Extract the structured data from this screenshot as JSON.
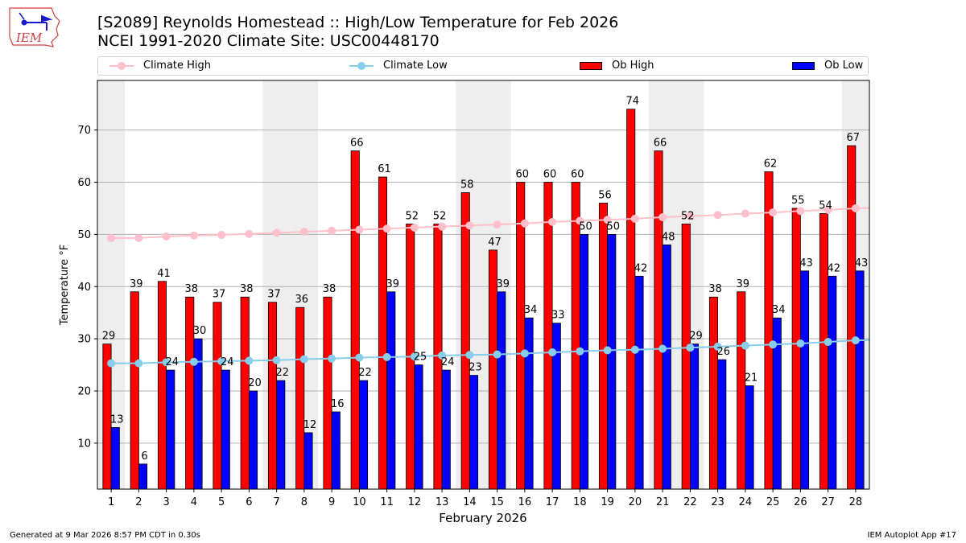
{
  "title_line1": "[S2089] Reynolds Homestead :: High/Low Temperature for Feb 2026",
  "title_line2": "NCEI 1991-2020 Climate Site: USC00448170",
  "logo_text": "IEM",
  "footer_left": "Generated at 9 Mar 2026 8:57 PM CDT in 0.30s",
  "footer_right": "IEM Autoplot App #17",
  "colors": {
    "ob_high": "#ff0000",
    "ob_low": "#0000ff",
    "climate_high": "#ffc0cb",
    "climate_low": "#87ceeb",
    "weekend_shade": "#eeeeee",
    "grid": "#b0b0b0"
  },
  "legend": [
    {
      "label": "Climate High",
      "kind": "line",
      "color_key": "climate_high"
    },
    {
      "label": "Climate Low",
      "kind": "line",
      "color_key": "climate_low"
    },
    {
      "label": "Ob High",
      "kind": "box",
      "color_key": "ob_high"
    },
    {
      "label": "Ob Low",
      "kind": "box",
      "color_key": "ob_low"
    }
  ],
  "chart_data": {
    "type": "bar",
    "title": "[S2089] Reynolds Homestead :: High/Low Temperature for Feb 2026",
    "subtitle": "NCEI 1991-2020 Climate Site: USC00448170",
    "xlabel": "February 2026",
    "ylabel": "Temperature °F",
    "ylim": [
      1.2,
      79.5
    ],
    "yticks": [
      10,
      20,
      30,
      40,
      50,
      60,
      70
    ],
    "grid": true,
    "legend_position": "top",
    "categories": [
      "1",
      "2",
      "3",
      "4",
      "5",
      "6",
      "7",
      "8",
      "9",
      "10",
      "11",
      "12",
      "13",
      "14",
      "15",
      "16",
      "17",
      "18",
      "19",
      "20",
      "21",
      "22",
      "23",
      "24",
      "25",
      "26",
      "27",
      "28"
    ],
    "weekend_days": [
      1,
      7,
      8,
      14,
      15,
      21,
      22,
      28
    ],
    "series": [
      {
        "name": "Ob High",
        "kind": "bar",
        "values": [
          29,
          39,
          41,
          38,
          37,
          38,
          37,
          36,
          38,
          66,
          61,
          52,
          52,
          58,
          47,
          60,
          60,
          60,
          56,
          74,
          66,
          52,
          38,
          39,
          62,
          55,
          54,
          67
        ]
      },
      {
        "name": "Ob Low",
        "kind": "bar",
        "values": [
          13,
          6,
          24,
          30,
          24,
          20,
          22,
          12,
          16,
          22,
          39,
          25,
          24,
          23,
          39,
          34,
          33,
          50,
          50,
          42,
          48,
          29,
          26,
          21,
          34,
          43,
          42,
          43
        ]
      },
      {
        "name": "Climate High",
        "kind": "line",
        "values": [
          49.3,
          49.3,
          49.6,
          49.8,
          49.9,
          50.1,
          50.3,
          50.5,
          50.7,
          50.9,
          51.1,
          51.3,
          51.5,
          51.7,
          51.9,
          52.1,
          52.4,
          52.6,
          52.8,
          53.0,
          53.3,
          53.5,
          53.7,
          54.0,
          54.2,
          54.5,
          54.7,
          55.0
        ]
      },
      {
        "name": "Climate Low",
        "kind": "line",
        "values": [
          25.3,
          25.3,
          25.5,
          25.6,
          25.7,
          25.8,
          25.9,
          26.1,
          26.2,
          26.4,
          26.5,
          26.6,
          26.8,
          26.9,
          27.0,
          27.2,
          27.4,
          27.6,
          27.8,
          27.9,
          28.1,
          28.3,
          28.5,
          28.7,
          28.9,
          29.1,
          29.4,
          29.7
        ]
      }
    ]
  }
}
